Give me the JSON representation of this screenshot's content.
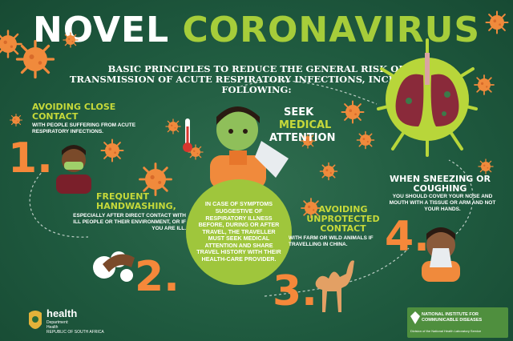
{
  "title": {
    "part1": "NOVEL ",
    "part2": "CORONAVIRUS"
  },
  "subtitle": "BASIC PRINCIPLES TO REDUCE THE GENERAL RISK OF TRANSMISSION OF ACUTE RESPIRATORY INFECTIONS, INCLUDE THE FOLLOWING:",
  "tips": {
    "close_contact": {
      "number": "1.",
      "heading": "AVOIDING CLOSE CONTACT",
      "text": "WITH PEOPLE SUFFERING FROM ACUTE RESPIRATORY INFECTIONS."
    },
    "handwashing": {
      "number": "2.",
      "heading": "FREQUENT HANDWASHING,",
      "text": "ESPECIALLY AFTER DIRECT CONTACT WITH ILL PEOPLE OR THEIR ENVIRONMENT, OR IF YOU ARE ILL."
    },
    "unprotected_contact": {
      "number": "3.",
      "heading": "AVOIDING UNPROTECTED CONTACT",
      "text": "WITH FARM OR WILD ANIMALS IF TRAVELLING IN CHINA."
    },
    "sneezing": {
      "number": "4.",
      "heading": "WHEN SNEEZING OR COUGHING",
      "text": "YOU SHOULD COVER YOUR NOSE AND MOUTH WITH A TISSUE OR ARM AND NOT YOUR HANDS."
    }
  },
  "medical": {
    "seek": "SEEK",
    "medical": "MEDICAL",
    "attention": "ATTENTION",
    "circle_text": "IN CASE OF SYMPTOMS SUGGESTIVE OF RESPIRATORY ILLNESS BEFORE, DURING OR AFTER TRAVEL, THE TRAVELLER MUST SEEK MEDICAL ATTENTION AND SHARE TRAVEL HISTORY WITH THEIR HEALTH-CARE PROVIDER."
  },
  "footer": {
    "health": "health",
    "dept_line1": "Department:",
    "dept_line2": "Health",
    "dept_line3": "REPUBLIC OF SOUTH AFRICA",
    "nicd_line1": "NATIONAL INSTITUTE FOR",
    "nicd_line2": "COMMUNICABLE DISEASES",
    "nicd_line3": "Division of the National Health Laboratory Service"
  },
  "colors": {
    "background": "#1f5a3f",
    "accent_green": "#a6cd3a",
    "accent_orange": "#f5883a",
    "heading_yellow": "#c6d93a"
  }
}
